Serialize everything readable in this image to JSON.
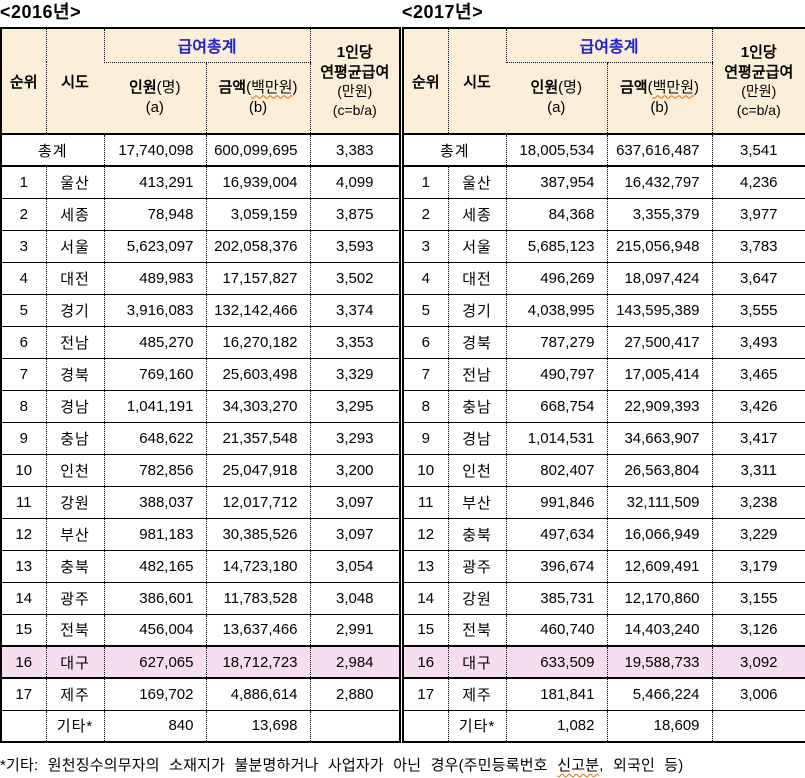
{
  "colors": {
    "header_bg": "#FCEFDA",
    "highlight_bg": "#F5DFEE",
    "title_blue": "#2222CC",
    "wavy_underline": "#E06A00"
  },
  "headers": {
    "rank": "순위",
    "region": "시도",
    "salary_total": "급여총계",
    "count_bold": "인원",
    "count_paren": "(명)",
    "count_sub": "(a)",
    "amount_bold": "금액",
    "amount_paren_open": "(",
    "amount_unit": "백만원",
    "amount_paren_close": ")",
    "amount_sub": "(b)",
    "percap_line1": "1인당",
    "percap_line2": "연평균급여",
    "percap_line3": "(만원)",
    "percap_line4": "(c=b/a)"
  },
  "footnote": {
    "prefix": "*기타: 원천징수의무자의 소재지가 불분명하거나 사업자가 아닌 경우(주민등록번호 ",
    "wavy": "신고분",
    "suffix": ", 외국인 등)"
  },
  "tables": [
    {
      "title": "<2016년>",
      "total": {
        "label": "총계",
        "count": "17,740,098",
        "amount": "600,099,695",
        "avg": "3,383"
      },
      "rows": [
        {
          "rank": "1",
          "region": "울산",
          "count": "413,291",
          "amount": "16,939,004",
          "avg": "4,099",
          "highlight": false
        },
        {
          "rank": "2",
          "region": "세종",
          "count": "78,948",
          "amount": "3,059,159",
          "avg": "3,875",
          "highlight": false
        },
        {
          "rank": "3",
          "region": "서울",
          "count": "5,623,097",
          "amount": "202,058,376",
          "avg": "3,593",
          "highlight": false
        },
        {
          "rank": "4",
          "region": "대전",
          "count": "489,983",
          "amount": "17,157,827",
          "avg": "3,502",
          "highlight": false
        },
        {
          "rank": "5",
          "region": "경기",
          "count": "3,916,083",
          "amount": "132,142,466",
          "avg": "3,374",
          "highlight": false
        },
        {
          "rank": "6",
          "region": "전남",
          "count": "485,270",
          "amount": "16,270,182",
          "avg": "3,353",
          "highlight": false
        },
        {
          "rank": "7",
          "region": "경북",
          "count": "769,160",
          "amount": "25,603,498",
          "avg": "3,329",
          "highlight": false
        },
        {
          "rank": "8",
          "region": "경남",
          "count": "1,041,191",
          "amount": "34,303,270",
          "avg": "3,295",
          "highlight": false
        },
        {
          "rank": "9",
          "region": "충남",
          "count": "648,622",
          "amount": "21,357,548",
          "avg": "3,293",
          "highlight": false
        },
        {
          "rank": "10",
          "region": "인천",
          "count": "782,856",
          "amount": "25,047,918",
          "avg": "3,200",
          "highlight": false
        },
        {
          "rank": "11",
          "region": "강원",
          "count": "388,037",
          "amount": "12,017,712",
          "avg": "3,097",
          "highlight": false
        },
        {
          "rank": "12",
          "region": "부산",
          "count": "981,183",
          "amount": "30,385,526",
          "avg": "3,097",
          "highlight": false
        },
        {
          "rank": "13",
          "region": "충북",
          "count": "482,165",
          "amount": "14,723,180",
          "avg": "3,054",
          "highlight": false
        },
        {
          "rank": "14",
          "region": "광주",
          "count": "386,601",
          "amount": "11,783,528",
          "avg": "3,048",
          "highlight": false
        },
        {
          "rank": "15",
          "region": "전북",
          "count": "456,004",
          "amount": "13,637,466",
          "avg": "2,991",
          "highlight": false
        },
        {
          "rank": "16",
          "region": "대구",
          "count": "627,065",
          "amount": "18,712,723",
          "avg": "2,984",
          "highlight": true
        },
        {
          "rank": "17",
          "region": "제주",
          "count": "169,702",
          "amount": "4,886,614",
          "avg": "2,880",
          "highlight": false
        }
      ],
      "etc": {
        "label": "기타*",
        "count": "840",
        "amount": "13,698",
        "avg": ""
      }
    },
    {
      "title": "<2017년>",
      "total": {
        "label": "총계",
        "count": "18,005,534",
        "amount": "637,616,487",
        "avg": "3,541"
      },
      "rows": [
        {
          "rank": "1",
          "region": "울산",
          "count": "387,954",
          "amount": "16,432,797",
          "avg": "4,236",
          "highlight": false
        },
        {
          "rank": "2",
          "region": "세종",
          "count": "84,368",
          "amount": "3,355,379",
          "avg": "3,977",
          "highlight": false
        },
        {
          "rank": "3",
          "region": "서울",
          "count": "5,685,123",
          "amount": "215,056,948",
          "avg": "3,783",
          "highlight": false
        },
        {
          "rank": "4",
          "region": "대전",
          "count": "496,269",
          "amount": "18,097,424",
          "avg": "3,647",
          "highlight": false
        },
        {
          "rank": "5",
          "region": "경기",
          "count": "4,038,995",
          "amount": "143,595,389",
          "avg": "3,555",
          "highlight": false
        },
        {
          "rank": "6",
          "region": "경북",
          "count": "787,279",
          "amount": "27,500,417",
          "avg": "3,493",
          "highlight": false
        },
        {
          "rank": "7",
          "region": "전남",
          "count": "490,797",
          "amount": "17,005,414",
          "avg": "3,465",
          "highlight": false
        },
        {
          "rank": "8",
          "region": "충남",
          "count": "668,754",
          "amount": "22,909,393",
          "avg": "3,426",
          "highlight": false
        },
        {
          "rank": "9",
          "region": "경남",
          "count": "1,014,531",
          "amount": "34,663,907",
          "avg": "3,417",
          "highlight": false
        },
        {
          "rank": "10",
          "region": "인천",
          "count": "802,407",
          "amount": "26,563,804",
          "avg": "3,311",
          "highlight": false
        },
        {
          "rank": "11",
          "region": "부산",
          "count": "991,846",
          "amount": "32,111,509",
          "avg": "3,238",
          "highlight": false
        },
        {
          "rank": "12",
          "region": "충북",
          "count": "497,634",
          "amount": "16,066,949",
          "avg": "3,229",
          "highlight": false
        },
        {
          "rank": "13",
          "region": "광주",
          "count": "396,674",
          "amount": "12,609,491",
          "avg": "3,179",
          "highlight": false
        },
        {
          "rank": "14",
          "region": "강원",
          "count": "385,731",
          "amount": "12,170,860",
          "avg": "3,155",
          "highlight": false
        },
        {
          "rank": "15",
          "region": "전북",
          "count": "460,740",
          "amount": "14,403,240",
          "avg": "3,126",
          "highlight": false
        },
        {
          "rank": "16",
          "region": "대구",
          "count": "633,509",
          "amount": "19,588,733",
          "avg": "3,092",
          "highlight": true
        },
        {
          "rank": "17",
          "region": "제주",
          "count": "181,841",
          "amount": "5,466,224",
          "avg": "3,006",
          "highlight": false
        }
      ],
      "etc": {
        "label": "기타*",
        "count": "1,082",
        "amount": "18,609",
        "avg": ""
      }
    }
  ]
}
